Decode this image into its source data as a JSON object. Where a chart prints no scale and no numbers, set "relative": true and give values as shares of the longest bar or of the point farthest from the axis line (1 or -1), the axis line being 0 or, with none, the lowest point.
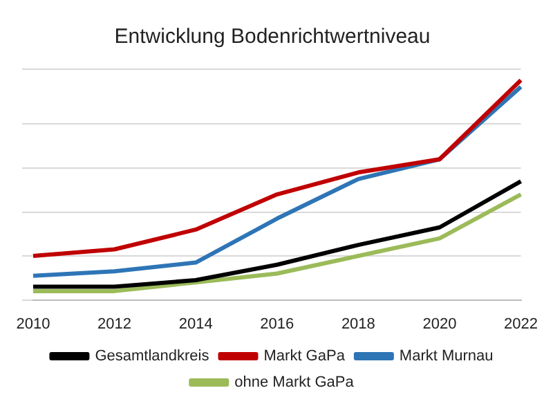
{
  "chart_data": {
    "type": "line",
    "title": "Entwicklung Bodenrichtwertniveau",
    "relative": true,
    "categories": [
      "2010",
      "2012",
      "2014",
      "2016",
      "2018",
      "2020",
      "2022"
    ],
    "series": [
      {
        "name": "Gesamtlandkreis",
        "color": "#000000",
        "values": [
          0.06,
          0.06,
          0.09,
          0.16,
          0.25,
          0.33,
          0.54
        ]
      },
      {
        "name": "Markt GaPa",
        "color": "#c00000",
        "values": [
          0.2,
          0.23,
          0.32,
          0.48,
          0.58,
          0.64,
          1
        ]
      },
      {
        "name": "Markt Murnau",
        "color": "#2e75b6",
        "values": [
          0.11,
          0.13,
          0.17,
          0.37,
          0.55,
          0.64,
          0.97
        ]
      },
      {
        "name": "ohne Markt GaPa",
        "color": "#9bbb59",
        "values": [
          0.04,
          0.04,
          0.08,
          0.12,
          0.2,
          0.28,
          0.48
        ]
      }
    ],
    "grid": "y",
    "legend": "bottom",
    "marker": "none",
    "line_style": "solid"
  }
}
